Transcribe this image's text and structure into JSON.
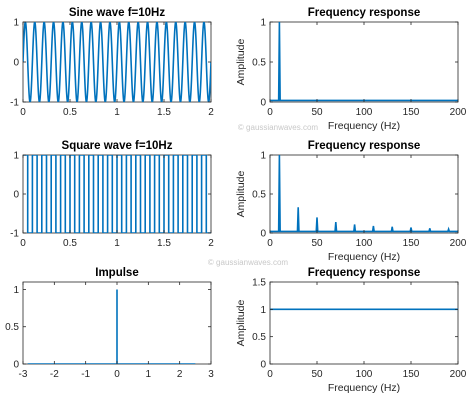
{
  "watermark": "© gaussianwaves.com",
  "line_color": "#0072BD",
  "chart_data": [
    {
      "type": "line",
      "title": "Sine wave f=10Hz",
      "xlabel": "",
      "ylabel": "",
      "xlim": [
        0,
        2
      ],
      "ylim": [
        -1,
        1
      ],
      "xticks": [
        0,
        0.5,
        1,
        1.5,
        2
      ],
      "xticklabels": [
        "0",
        "0.5",
        "1",
        "1.5",
        "2"
      ],
      "yticks": [
        -1,
        0,
        1
      ],
      "yticklabels": [
        "-1",
        "0",
        "1"
      ],
      "signal": {
        "kind": "sine",
        "frequency": 10,
        "amplitude": 1,
        "duration": 2
      }
    },
    {
      "type": "line",
      "title": "Frequency response",
      "xlabel": "Frequency (Hz)",
      "ylabel": "Amplitude",
      "xlim": [
        0,
        200
      ],
      "ylim": [
        0,
        1
      ],
      "xticks": [
        0,
        50,
        100,
        150,
        200
      ],
      "xticklabels": [
        "0",
        "50",
        "100",
        "150",
        "200"
      ],
      "yticks": [
        0,
        0.5,
        1
      ],
      "yticklabels": [
        "0",
        "0.5",
        "1"
      ],
      "baseline": 0.02,
      "peaks": [
        {
          "x": 10,
          "y": 1
        }
      ]
    },
    {
      "type": "line",
      "title": "Square wave f=10Hz",
      "xlabel": "",
      "ylabel": "",
      "xlim": [
        0,
        2
      ],
      "ylim": [
        -1,
        1
      ],
      "xticks": [
        0,
        0.5,
        1,
        1.5,
        2
      ],
      "xticklabels": [
        "0",
        "0.5",
        "1",
        "1.5",
        "2"
      ],
      "yticks": [
        -1,
        0,
        1
      ],
      "yticklabels": [
        "-1",
        "0",
        "1"
      ],
      "signal": {
        "kind": "square",
        "frequency": 10,
        "amplitude": 1,
        "duration": 2
      }
    },
    {
      "type": "line",
      "title": "Frequency response",
      "xlabel": "Frequency (Hz)",
      "ylabel": "Amplitude",
      "xlim": [
        0,
        200
      ],
      "ylim": [
        0,
        1
      ],
      "xticks": [
        0,
        50,
        100,
        150,
        200
      ],
      "xticklabels": [
        "0",
        "50",
        "100",
        "150",
        "200"
      ],
      "yticks": [
        0,
        0.5,
        1
      ],
      "yticklabels": [
        "0",
        "0.5",
        "1"
      ],
      "baseline": 0.02,
      "peaks": [
        {
          "x": 10,
          "y": 1
        },
        {
          "x": 30,
          "y": 0.33
        },
        {
          "x": 50,
          "y": 0.2
        },
        {
          "x": 70,
          "y": 0.14
        },
        {
          "x": 90,
          "y": 0.11
        },
        {
          "x": 110,
          "y": 0.09
        },
        {
          "x": 130,
          "y": 0.08
        },
        {
          "x": 150,
          "y": 0.07
        },
        {
          "x": 170,
          "y": 0.06
        },
        {
          "x": 190,
          "y": 0.05
        }
      ]
    },
    {
      "type": "line",
      "title": "Impulse",
      "xlabel": "",
      "ylabel": "",
      "xlim": [
        -3,
        3
      ],
      "ylim": [
        0,
        1.1
      ],
      "xticks": [
        -3,
        -2,
        -1,
        0,
        1,
        2,
        3
      ],
      "xticklabels": [
        "-3",
        "-2",
        "-1",
        "0",
        "1",
        "2",
        "3"
      ],
      "yticks": [
        0,
        0.5,
        1
      ],
      "yticklabels": [
        "0",
        "0.5",
        "1"
      ],
      "x": [
        -2.85,
        0,
        0,
        0,
        2.5
      ],
      "y": [
        0,
        0,
        1,
        0,
        0
      ]
    },
    {
      "type": "line",
      "title": "Frequency response",
      "xlabel": "Frequency (Hz)",
      "ylabel": "Amplitude",
      "xlim": [
        0,
        200
      ],
      "ylim": [
        0,
        1.5
      ],
      "xticks": [
        0,
        50,
        100,
        150,
        200
      ],
      "xticklabels": [
        "0",
        "50",
        "100",
        "150",
        "200"
      ],
      "yticks": [
        0,
        0.5,
        1,
        1.5
      ],
      "yticklabels": [
        "0",
        "0.5",
        "1",
        "1.5"
      ],
      "x": [
        0,
        200
      ],
      "y": [
        1,
        1
      ]
    }
  ]
}
